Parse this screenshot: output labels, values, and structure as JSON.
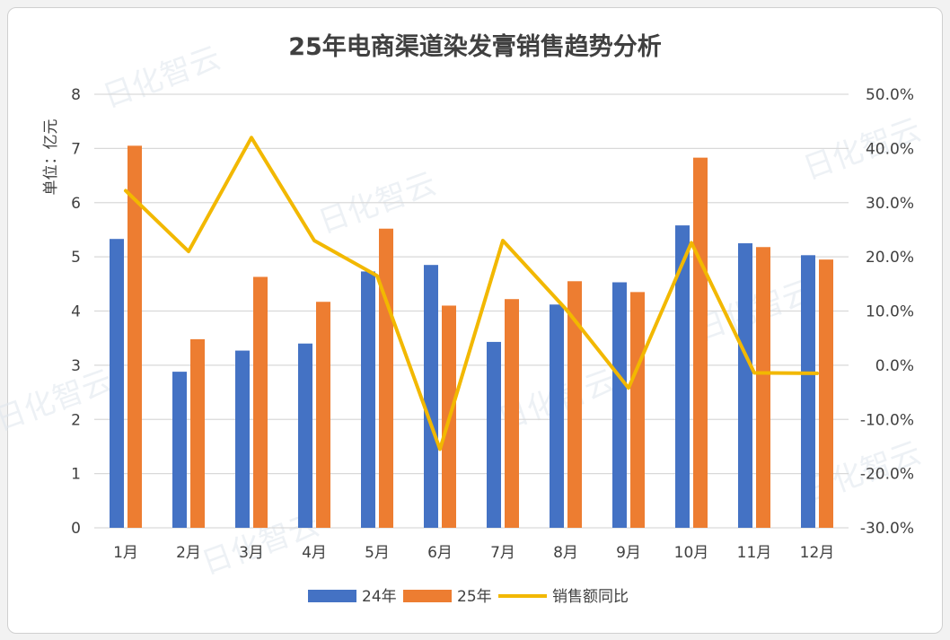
{
  "chart_data": {
    "type": "bar",
    "title": "25年电商渠道染发膏销售趋势分析",
    "ylabel": "单位：亿元",
    "categories": [
      "1月",
      "2月",
      "3月",
      "4月",
      "5月",
      "6月",
      "7月",
      "8月",
      "9月",
      "10月",
      "11月",
      "12月"
    ],
    "series": [
      {
        "name": "24年",
        "type": "bar",
        "axis": "left",
        "color": "#4472c4",
        "values": [
          5.33,
          2.88,
          3.27,
          3.4,
          4.73,
          4.85,
          3.43,
          4.12,
          4.53,
          5.58,
          5.25,
          5.03
        ]
      },
      {
        "name": "25年",
        "type": "bar",
        "axis": "left",
        "color": "#ed7d31",
        "values": [
          7.05,
          3.48,
          4.63,
          4.17,
          5.52,
          4.1,
          4.22,
          4.55,
          4.35,
          6.83,
          5.18,
          4.95
        ]
      },
      {
        "name": "销售额同比",
        "type": "line",
        "axis": "right",
        "color": "#f2b800",
        "values": [
          32.2,
          21.0,
          42.0,
          23.0,
          16.5,
          -15.5,
          23.0,
          10.4,
          -4.2,
          22.6,
          -1.4,
          -1.5
        ]
      }
    ],
    "ylim": [
      0,
      8
    ],
    "yticks": [
      "0",
      "1",
      "2",
      "3",
      "4",
      "5",
      "6",
      "7",
      "8"
    ],
    "y2lim": [
      -30,
      50
    ],
    "y2ticks": [
      "-30.0%",
      "-20.0%",
      "-10.0%",
      "0.0%",
      "10.0%",
      "20.0%",
      "30.0%",
      "40.0%",
      "50.0%"
    ],
    "grid": true,
    "legend": "bottom"
  },
  "watermark": "日化智云"
}
